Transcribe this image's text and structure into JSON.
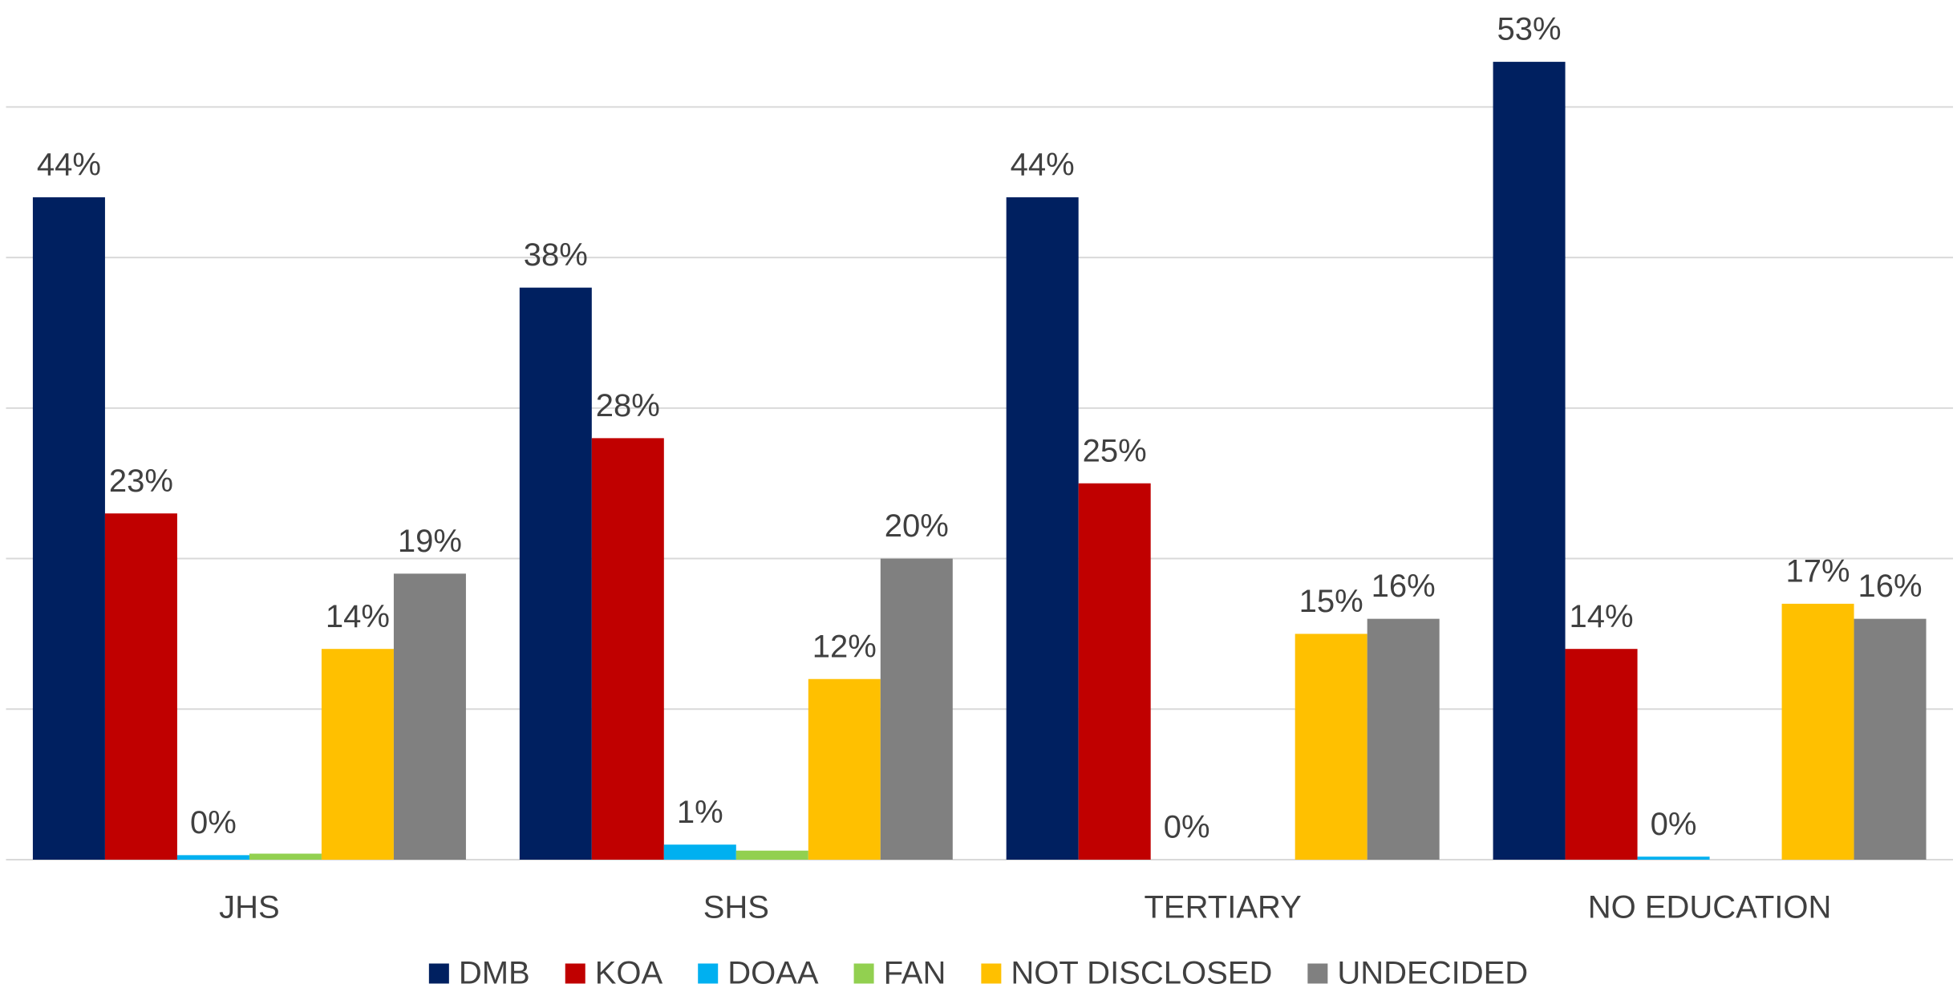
{
  "chart_data": {
    "type": "bar",
    "categories": [
      "JHS",
      "SHS",
      "TERTIARY",
      "NO EDUCATION"
    ],
    "series": [
      {
        "name": "DMB",
        "color": "#002060",
        "values": [
          44,
          38,
          44,
          53
        ],
        "value_labels": [
          "44%",
          "38%",
          "44%",
          "53%"
        ]
      },
      {
        "name": "KOA",
        "color": "#c00000",
        "values": [
          23,
          28,
          25,
          14
        ],
        "value_labels": [
          "23%",
          "28%",
          "25%",
          "14%"
        ]
      },
      {
        "name": "DOAA",
        "color": "#00b0f0",
        "values": [
          0.3,
          1,
          0,
          0.2
        ],
        "value_labels": [
          "0%",
          "1%",
          "0%",
          "0%"
        ]
      },
      {
        "name": "FAN",
        "color": "#92d050",
        "values": [
          0.4,
          0.6,
          null,
          null
        ],
        "value_labels": [
          null,
          null,
          null,
          null
        ]
      },
      {
        "name": "NOT DISCLOSED",
        "color": "#ffc000",
        "values": [
          14,
          12,
          15,
          17
        ],
        "value_labels": [
          "14%",
          "12%",
          "15%",
          "17%"
        ]
      },
      {
        "name": "UNDECIDED",
        "color": "#808080",
        "values": [
          19,
          20,
          16,
          16
        ],
        "value_labels": [
          "19%",
          "20%",
          "16%",
          "16%"
        ]
      }
    ],
    "ylim": [
      0,
      57
    ],
    "yticks": [
      0,
      10,
      20,
      30,
      40,
      50
    ],
    "ytick_labels_shown": false,
    "grid": true,
    "legend": "bottom"
  }
}
